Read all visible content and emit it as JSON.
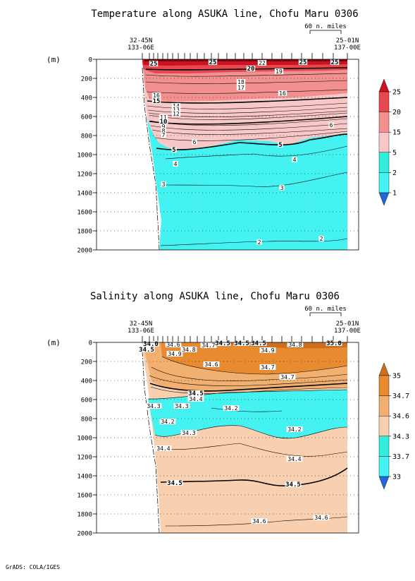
{
  "footer": "GrADS: COLA/IGES",
  "chart_data": [
    {
      "type": "heatmap",
      "title": "Temperature along ASUKA line, Chofu Maru 0306",
      "ylabel": "(m)",
      "scale_label": "60 n. miles",
      "station_start": [
        "32-45N",
        "133-06E"
      ],
      "station_end": [
        "25-01N",
        "137-00E"
      ],
      "y_ticks": [
        "0",
        "200",
        "400",
        "600",
        "800",
        "1000",
        "1200",
        "1400",
        "1600",
        "1800",
        "2000"
      ],
      "ylim": [
        2000,
        0
      ],
      "colorbar_labels": [
        "25",
        "20",
        "15",
        "5",
        "2",
        "1"
      ],
      "colors": [
        "#cc1122",
        "#e64850",
        "#f29090",
        "#f8c8c8",
        "#33eedd",
        "#44f2f2",
        "#2266dd"
      ],
      "contour_labels": [
        "25",
        "22",
        "25",
        "25",
        "25",
        "20",
        "19",
        "18",
        "17",
        "16",
        "16",
        "15",
        "14",
        "13",
        "12",
        "11",
        "10",
        "9",
        "8",
        "7",
        "6",
        "6",
        "5",
        "5",
        "4",
        "4",
        "3",
        "3",
        "2",
        "2"
      ],
      "grid": true
    },
    {
      "type": "heatmap",
      "title": "Salinity along ASUKA line, Chofu Maru 0306",
      "ylabel": "(m)",
      "scale_label": "60 n. miles",
      "station_start": [
        "32-45N",
        "133-06E"
      ],
      "station_end": [
        "25-01N",
        "137-00E"
      ],
      "y_ticks": [
        "0",
        "200",
        "400",
        "600",
        "800",
        "1000",
        "1200",
        "1400",
        "1600",
        "1800",
        "2000"
      ],
      "ylim": [
        2000,
        0
      ],
      "colorbar_labels": [
        "35",
        "34.7",
        "34.6",
        "34.3",
        "33.7",
        "33"
      ],
      "colors": [
        "#cc7020",
        "#e88a30",
        "#f2b070",
        "#f8d0b0",
        "#33eedd",
        "#44f2f2",
        "#2266dd"
      ],
      "contour_labels": [
        "34.0",
        "34.5",
        "34.6",
        "34.7",
        "34.5",
        "34.5",
        "34.5",
        "34.8",
        "35.0",
        "34.9",
        "34.9",
        "34.8",
        "34.7",
        "34.7",
        "34.6",
        "34.5",
        "34.4",
        "34.3",
        "34.3",
        "34.2",
        "34.2",
        "34.2",
        "34.3",
        "34.4",
        "34.4",
        "34.5",
        "34.5",
        "34.6",
        "34.6"
      ],
      "grid": true
    }
  ]
}
